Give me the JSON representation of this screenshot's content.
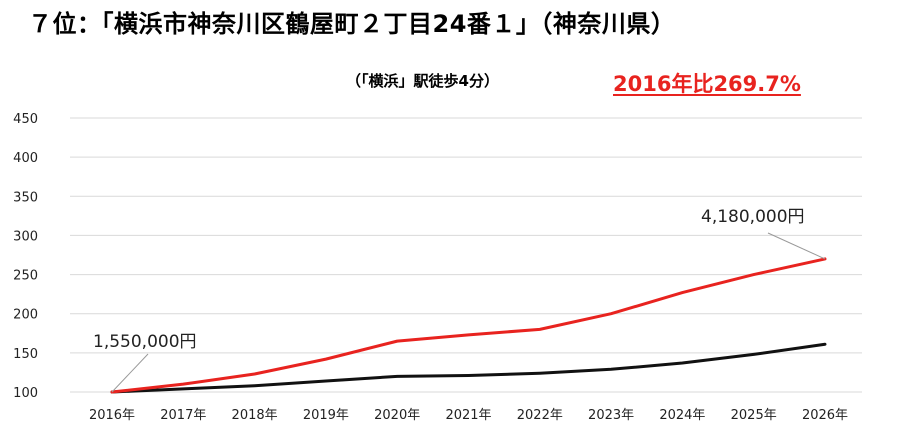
{
  "header": {
    "title": "７位：「横浜市神奈川区鶴屋町２丁目24番１」（神奈川県）",
    "subtitle": "（「横浜」駅徒歩4分）",
    "growth_label": "2016年比269.7%"
  },
  "colors": {
    "red": "#e8231f",
    "black": "#111111",
    "grid": "#d9d9d9"
  },
  "chart_data": {
    "type": "line",
    "title": "",
    "xlabel": "",
    "ylabel": "",
    "categories": [
      "2016年",
      "2017年",
      "2018年",
      "2019年",
      "2020年",
      "2021年",
      "2022年",
      "2023年",
      "2024年",
      "2025年",
      "2026年"
    ],
    "ylim": [
      100,
      450
    ],
    "yticks": [
      100,
      150,
      200,
      250,
      300,
      350,
      400,
      450
    ],
    "grid": true,
    "series": [
      {
        "color": "#e8231f",
        "values": [
          100,
          110,
          123,
          142,
          165,
          173,
          180,
          200,
          227,
          250,
          270
        ]
      },
      {
        "color": "#111111",
        "values": [
          100,
          104,
          108,
          114,
          120,
          121,
          124,
          129,
          137,
          148,
          161
        ]
      }
    ],
    "annotations": [
      {
        "text": "1,550,000円",
        "series": 0,
        "index": 0
      },
      {
        "text": "4,180,000円",
        "series": 0,
        "index": 10
      }
    ]
  }
}
